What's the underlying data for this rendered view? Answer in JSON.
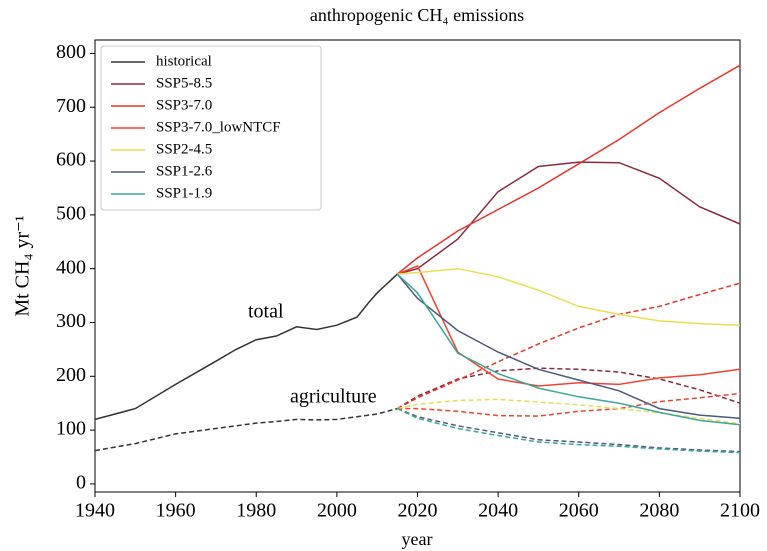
{
  "chart_data": {
    "type": "line",
    "title": "anthropogenic CH₄ emissions",
    "xlabel": "year",
    "ylabel": "Mt CH₄ yr⁻¹",
    "annotations": [
      "total",
      "agriculture"
    ],
    "xlim": [
      1940,
      2100
    ],
    "xticks": [
      1940,
      1960,
      1980,
      2000,
      2020,
      2040,
      2060,
      2080,
      2100
    ],
    "ylim": [
      -15,
      825
    ],
    "yticks": [
      0,
      100,
      200,
      300,
      400,
      500,
      600,
      700,
      800
    ],
    "legend": "upper left",
    "series": [
      {
        "name": "historical",
        "color": "#333333",
        "x": [
          1940,
          1950,
          1960,
          1970,
          1975,
          1980,
          1985,
          1990,
          1995,
          2000,
          2005,
          2008,
          2010,
          2015
        ],
        "values": [
          120,
          140,
          185,
          228,
          250,
          268,
          275,
          292,
          287,
          295,
          310,
          338,
          355,
          390
        ],
        "agriculture": [
          62,
          75,
          93,
          103,
          108,
          113,
          116,
          120,
          119,
          120,
          125,
          128,
          130,
          140
        ]
      },
      {
        "name": "SSP5-8.5",
        "color": "#8b2a3f",
        "x": [
          2015,
          2020,
          2030,
          2040,
          2050,
          2060,
          2070,
          2080,
          2090,
          2100
        ],
        "values": [
          390,
          400,
          455,
          543,
          590,
          598,
          597,
          568,
          515,
          483
        ],
        "agriculture": [
          140,
          163,
          195,
          210,
          215,
          213,
          208,
          195,
          175,
          150
        ]
      },
      {
        "name": "SSP3-7.0",
        "color": "#e8362b",
        "x": [
          2015,
          2020,
          2030,
          2040,
          2050,
          2060,
          2070,
          2080,
          2090,
          2100
        ],
        "values": [
          390,
          420,
          470,
          510,
          550,
          595,
          640,
          690,
          735,
          778
        ],
        "agriculture": [
          140,
          160,
          193,
          227,
          260,
          290,
          315,
          330,
          352,
          373
        ]
      },
      {
        "name": "SSP3-7.0_lowNTCF",
        "color": "#f0442f",
        "x": [
          2015,
          2020,
          2030,
          2040,
          2050,
          2060,
          2070,
          2080,
          2090,
          2100
        ],
        "values": [
          390,
          405,
          245,
          195,
          182,
          188,
          185,
          197,
          203,
          213
        ],
        "agriculture": [
          140,
          140,
          135,
          127,
          126,
          135,
          140,
          153,
          160,
          168
        ]
      },
      {
        "name": "SSP2-4.5",
        "color": "#e6e050",
        "x": [
          2015,
          2020,
          2030,
          2040,
          2050,
          2060,
          2070,
          2080,
          2090,
          2100
        ],
        "values": [
          390,
          393,
          400,
          385,
          360,
          330,
          315,
          303,
          298,
          295
        ],
        "agriculture": [
          140,
          148,
          155,
          157,
          152,
          147,
          140,
          132,
          122,
          112
        ]
      },
      {
        "name": "SSP1-2.6",
        "color": "#4a5a7e",
        "x": [
          2015,
          2020,
          2030,
          2040,
          2050,
          2060,
          2070,
          2080,
          2090,
          2100
        ],
        "values": [
          390,
          345,
          285,
          245,
          213,
          193,
          173,
          140,
          128,
          122
        ],
        "agriculture": [
          140,
          125,
          108,
          95,
          82,
          78,
          73,
          67,
          63,
          60
        ]
      },
      {
        "name": "SSP1-1.9",
        "color": "#3aa89a",
        "x": [
          2015,
          2020,
          2030,
          2040,
          2050,
          2060,
          2070,
          2080,
          2090,
          2100
        ],
        "values": [
          390,
          355,
          243,
          205,
          178,
          162,
          150,
          133,
          118,
          110
        ],
        "agriculture": [
          140,
          122,
          103,
          90,
          78,
          73,
          70,
          65,
          61,
          58
        ]
      }
    ]
  }
}
